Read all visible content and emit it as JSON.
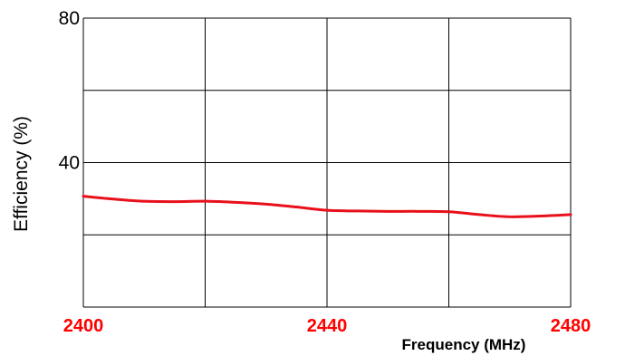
{
  "chart_data": {
    "type": "line",
    "xlabel": "Frequency (MHz)",
    "ylabel": "Efficiency (%)",
    "xlim": [
      2400,
      2480
    ],
    "ylim": [
      0,
      80
    ],
    "x_ticks": [
      2400,
      2440,
      2480
    ],
    "x_tick_labels": [
      "2400",
      "2440",
      "2480"
    ],
    "y_ticks": [
      40,
      80
    ],
    "y_tick_labels": [
      "40",
      "80"
    ],
    "x_grid": [
      2400,
      2420,
      2440,
      2460,
      2480
    ],
    "y_grid": [
      0,
      20,
      40,
      60,
      80
    ],
    "grid": true,
    "colors": {
      "line": "#e8101a",
      "x_tick_labels": "#ff0000",
      "grid": "#000000"
    },
    "series": [
      {
        "x": [
          2400,
          2405,
          2410,
          2415,
          2420,
          2425,
          2430,
          2435,
          2440,
          2445,
          2450,
          2455,
          2460,
          2465,
          2470,
          2475,
          2480
        ],
        "y": [
          30.7,
          29.9,
          29.3,
          29.2,
          29.3,
          29.0,
          28.5,
          27.7,
          26.8,
          26.6,
          26.5,
          26.5,
          26.4,
          25.6,
          25.0,
          25.2,
          25.6
        ]
      }
    ]
  }
}
